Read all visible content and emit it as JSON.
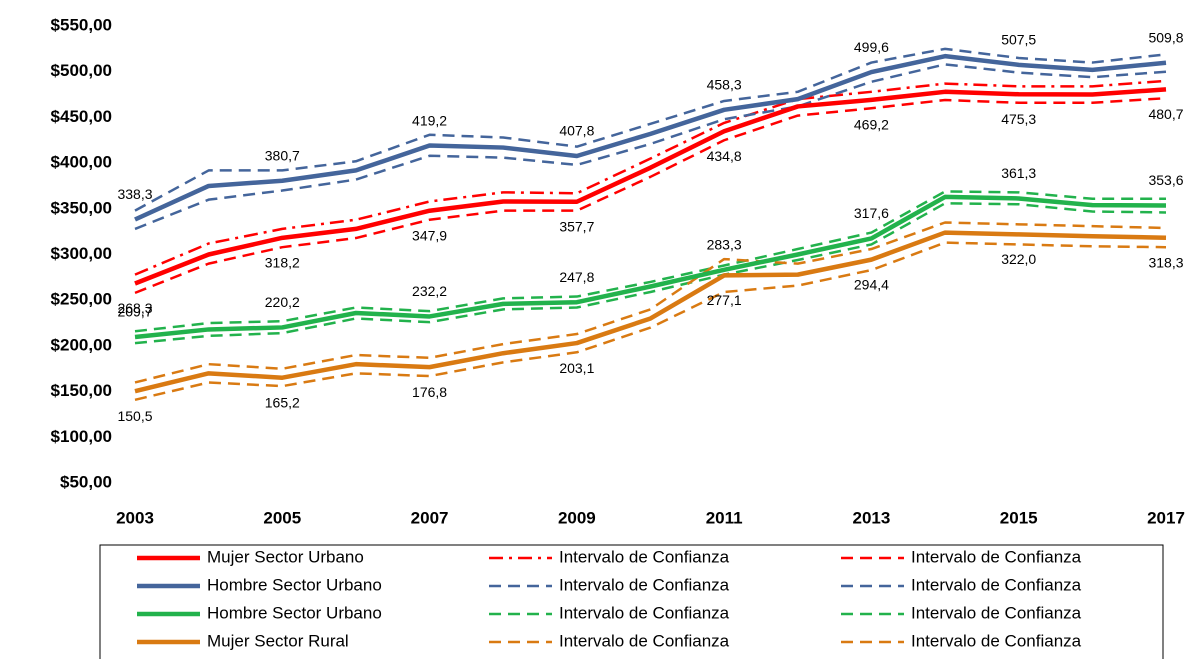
{
  "chart_data": {
    "type": "line",
    "x": [
      2003,
      2004,
      2005,
      2006,
      2007,
      2008,
      2009,
      2010,
      2011,
      2012,
      2013,
      2014,
      2015,
      2016,
      2017
    ],
    "xlim": [
      2003,
      2017
    ],
    "xticks": [
      2003,
      2005,
      2007,
      2009,
      2011,
      2013,
      2015,
      2017
    ],
    "ylim": [
      50,
      550
    ],
    "yticks": [
      {
        "value": 50,
        "label": "$50,00"
      },
      {
        "value": 100,
        "label": "$100,00"
      },
      {
        "value": 150,
        "label": "$150,00"
      },
      {
        "value": 200,
        "label": "$200,00"
      },
      {
        "value": 250,
        "label": "$250,00"
      },
      {
        "value": 300,
        "label": "$300,00"
      },
      {
        "value": 350,
        "label": "$350,00"
      },
      {
        "value": 400,
        "label": "$400,00"
      },
      {
        "value": 450,
        "label": "$450,00"
      },
      {
        "value": 500,
        "label": "$500,00"
      },
      {
        "value": 550,
        "label": "$550,00"
      }
    ],
    "grid": false,
    "legend_columns": 3,
    "series": [
      {
        "name": "Mujer Sector Urbano",
        "color": "#ff0000",
        "style": "solid",
        "values": [
          268.3,
          300,
          318.2,
          328,
          347.9,
          358,
          357.7,
          395,
          434.8,
          462,
          469.2,
          478,
          475.3,
          475,
          480.7
        ],
        "value_labels": [
          "268,3",
          null,
          "318,2",
          null,
          "347,9",
          null,
          "357,7",
          null,
          "434,8",
          null,
          "469,2",
          null,
          "475,3",
          null,
          "480,7"
        ]
      },
      {
        "name": "Intervalo de Confianza",
        "color": "#ff0000",
        "style": "dashdot",
        "values": [
          278,
          312,
          328,
          338,
          358,
          368,
          367,
          405,
          444,
          470,
          478,
          487,
          484,
          484,
          490
        ]
      },
      {
        "name": "Intervalo de Confianza",
        "color": "#ff0000",
        "style": "dashed",
        "values": [
          258,
          290,
          308,
          318,
          338,
          348,
          348,
          385,
          425,
          452,
          460,
          469,
          466,
          466,
          471
        ]
      },
      {
        "name": "Hombre Sector Urbano",
        "color": "#44659b",
        "style": "solid",
        "values": [
          338.3,
          375,
          380.7,
          392,
          419.2,
          417,
          407.8,
          432,
          458.3,
          470,
          499.6,
          517,
          507.5,
          502,
          509.8
        ],
        "value_labels": [
          "338,3",
          null,
          "380,7",
          null,
          "419,2",
          null,
          "407,8",
          null,
          "458,3",
          null,
          "499,6",
          null,
          "507,5",
          null,
          "509,8"
        ]
      },
      {
        "name": "Intervalo de Confianza",
        "color": "#44659b",
        "style": "dashed",
        "values": [
          348,
          392,
          392,
          402,
          431,
          428,
          418,
          443,
          468,
          478,
          510,
          525,
          515,
          510,
          519
        ]
      },
      {
        "name": "Intervalo de Confianza",
        "color": "#44659b",
        "style": "dashed",
        "values": [
          328,
          360,
          370,
          382,
          408,
          406,
          398,
          421,
          448,
          462,
          489,
          508,
          499,
          494,
          500
        ]
      },
      {
        "name": "Hombre Sector Urbano",
        "color": "#22b24c",
        "style": "solid",
        "values": [
          209.7,
          218,
          220.2,
          236,
          232.2,
          246,
          247.8,
          265,
          283.3,
          300,
          317.6,
          363,
          361.3,
          354,
          353.6
        ],
        "value_labels": [
          "209,7",
          null,
          "220,2",
          null,
          "232,2",
          null,
          "247,8",
          null,
          "283,3",
          null,
          "317,6",
          null,
          "361,3",
          null,
          "353,6"
        ]
      },
      {
        "name": "Intervalo de Confianza",
        "color": "#22b24c",
        "style": "dashed",
        "values": [
          216,
          225,
          227,
          242,
          238,
          252,
          254,
          270,
          288,
          306,
          324,
          369,
          368,
          361,
          361
        ]
      },
      {
        "name": "Intervalo de Confianza",
        "color": "#22b24c",
        "style": "dashed",
        "values": [
          203,
          211,
          214,
          230,
          226,
          240,
          242,
          259,
          278,
          294,
          311,
          356,
          355,
          347,
          346
        ]
      },
      {
        "name": "Mujer Sector Rural",
        "color": "#d97a12",
        "style": "solid",
        "values": [
          150.5,
          170,
          165.2,
          180,
          176.8,
          192,
          203.1,
          230,
          277.1,
          278,
          294.4,
          324,
          322.0,
          320,
          318.3
        ],
        "value_labels": [
          "150,5",
          null,
          "165,2",
          null,
          "176,8",
          null,
          "203,1",
          null,
          "277,1",
          null,
          "294,4",
          null,
          "322,0",
          null,
          "318,3"
        ]
      },
      {
        "name": "Intervalo de Confianza",
        "color": "#d97a12",
        "style": "dashed",
        "values": [
          160,
          180,
          175,
          190,
          187,
          202,
          213,
          240,
          295,
          290,
          306,
          335,
          333,
          331,
          329
        ]
      },
      {
        "name": "Intervalo de Confianza",
        "color": "#d97a12",
        "style": "dashed",
        "values": [
          141,
          160,
          156,
          170,
          167,
          182,
          193,
          220,
          259,
          266,
          283,
          313,
          311,
          309,
          308
        ]
      }
    ]
  }
}
